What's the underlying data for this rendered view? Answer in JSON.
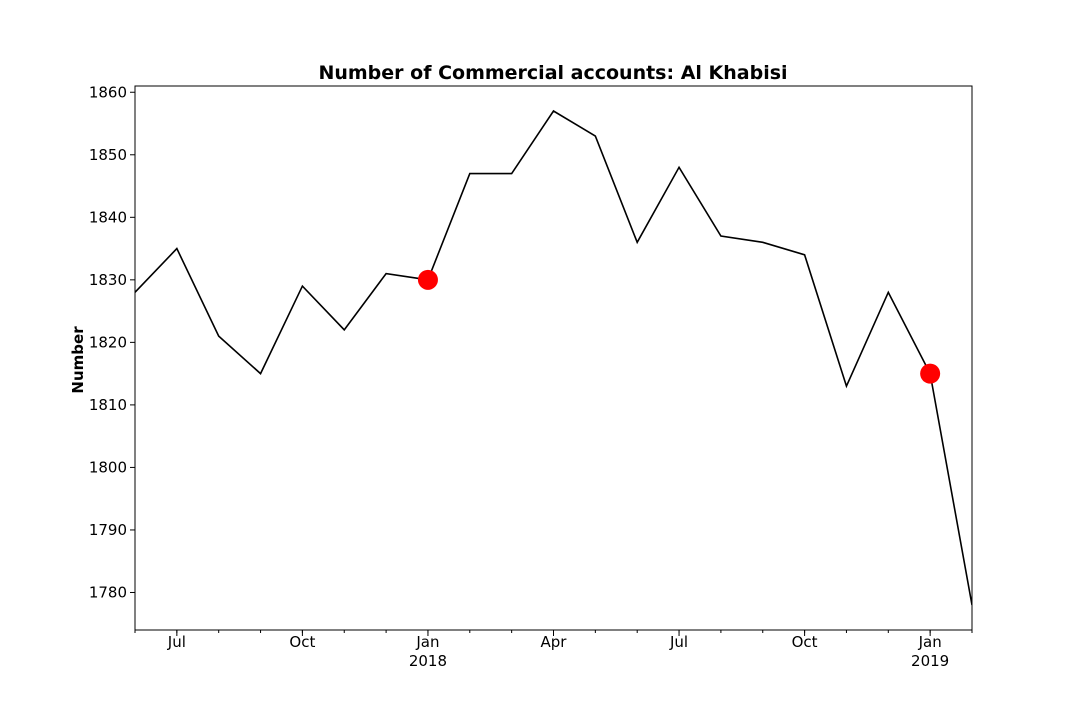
{
  "chart_data": {
    "type": "line",
    "title": "Number of Commercial accounts: Al Khabisi",
    "xlabel": "",
    "ylabel": "Number",
    "x": [
      "2017-06",
      "2017-07",
      "2017-08",
      "2017-09",
      "2017-10",
      "2017-11",
      "2017-12",
      "2018-01",
      "2018-02",
      "2018-03",
      "2018-04",
      "2018-05",
      "2018-06",
      "2018-07",
      "2018-08",
      "2018-09",
      "2018-10",
      "2018-11",
      "2018-12",
      "2019-01",
      "2019-02"
    ],
    "series": [
      {
        "values": [
          1828,
          1835,
          1821,
          1815,
          1829,
          1822,
          1831,
          1830,
          1847,
          1847,
          1857,
          1853,
          1836,
          1848,
          1837,
          1836,
          1834,
          1813,
          1828,
          1815,
          1778
        ],
        "color": "#000000"
      }
    ],
    "highlights": [
      {
        "x": "2018-01",
        "value": 1830,
        "color": "#ff0000"
      },
      {
        "x": "2019-01",
        "value": 1815,
        "color": "#ff0000"
      }
    ],
    "ylim": [
      1774,
      1861
    ],
    "xlim": [
      "2017-06",
      "2019-02"
    ],
    "yticks": [
      1780,
      1790,
      1800,
      1810,
      1820,
      1830,
      1840,
      1850,
      1860
    ],
    "xticks": [
      {
        "x": "2017-07",
        "label": "Jul",
        "sublabel": ""
      },
      {
        "x": "2017-10",
        "label": "Oct",
        "sublabel": ""
      },
      {
        "x": "2018-01",
        "label": "Jan",
        "sublabel": "2018"
      },
      {
        "x": "2018-04",
        "label": "Apr",
        "sublabel": ""
      },
      {
        "x": "2018-07",
        "label": "Jul",
        "sublabel": ""
      },
      {
        "x": "2018-10",
        "label": "Oct",
        "sublabel": ""
      },
      {
        "x": "2019-01",
        "label": "Jan",
        "sublabel": "2019"
      }
    ],
    "grid": false,
    "legend": "none"
  }
}
